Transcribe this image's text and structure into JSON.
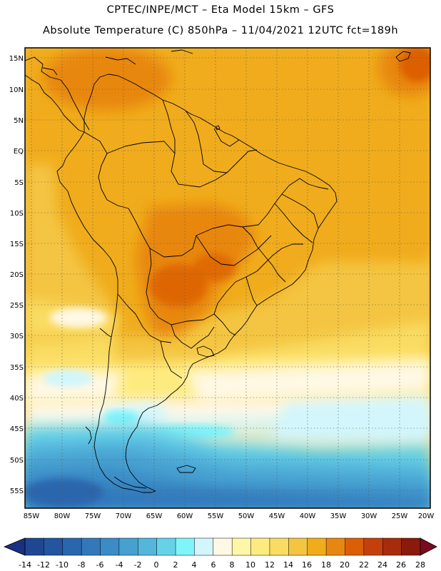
{
  "header": {
    "line1": "CPTEC/INPE/MCT –  Eta Model 15km – GFS",
    "line2": "Absolute Temperature (C) 850hPa – 11/04/2021 12UTC fct=189h"
  },
  "map": {
    "lat_labels": [
      "15N",
      "10N",
      "5N",
      "EQ",
      "5S",
      "10S",
      "15S",
      "20S",
      "25S",
      "30S",
      "35S",
      "40S",
      "45S",
      "50S",
      "55S"
    ],
    "lon_labels": [
      "85W",
      "80W",
      "75W",
      "70W",
      "65W",
      "60W",
      "55W",
      "50W",
      "45W",
      "40W",
      "35W",
      "30W",
      "25W",
      "20W"
    ]
  },
  "colorbar": {
    "labels": [
      "-14",
      "-12",
      "-10",
      "-8",
      "-6",
      "-4",
      "-2",
      "0",
      "2",
      "4",
      "6",
      "8",
      "10",
      "12",
      "14",
      "16",
      "18",
      "20",
      "22",
      "24",
      "26",
      "28"
    ],
    "colors": [
      "#1f4690",
      "#24559e",
      "#2a66ad",
      "#3278bb",
      "#3a8bc6",
      "#46a0d0",
      "#55b6db",
      "#66d2e8",
      "#7ef4fb",
      "#d2f6fc",
      "#fff8e4",
      "#fff7a8",
      "#feeb80",
      "#fadc62",
      "#f4c542",
      "#f0ac1a",
      "#e88710",
      "#dc5e06",
      "#c4400a",
      "#a82c0c",
      "#8a1a0c"
    ],
    "low_color": "#1a3080",
    "high_color": "#7a0a20"
  },
  "palette": {
    "land_line": "#000000",
    "grid": "#555555"
  }
}
